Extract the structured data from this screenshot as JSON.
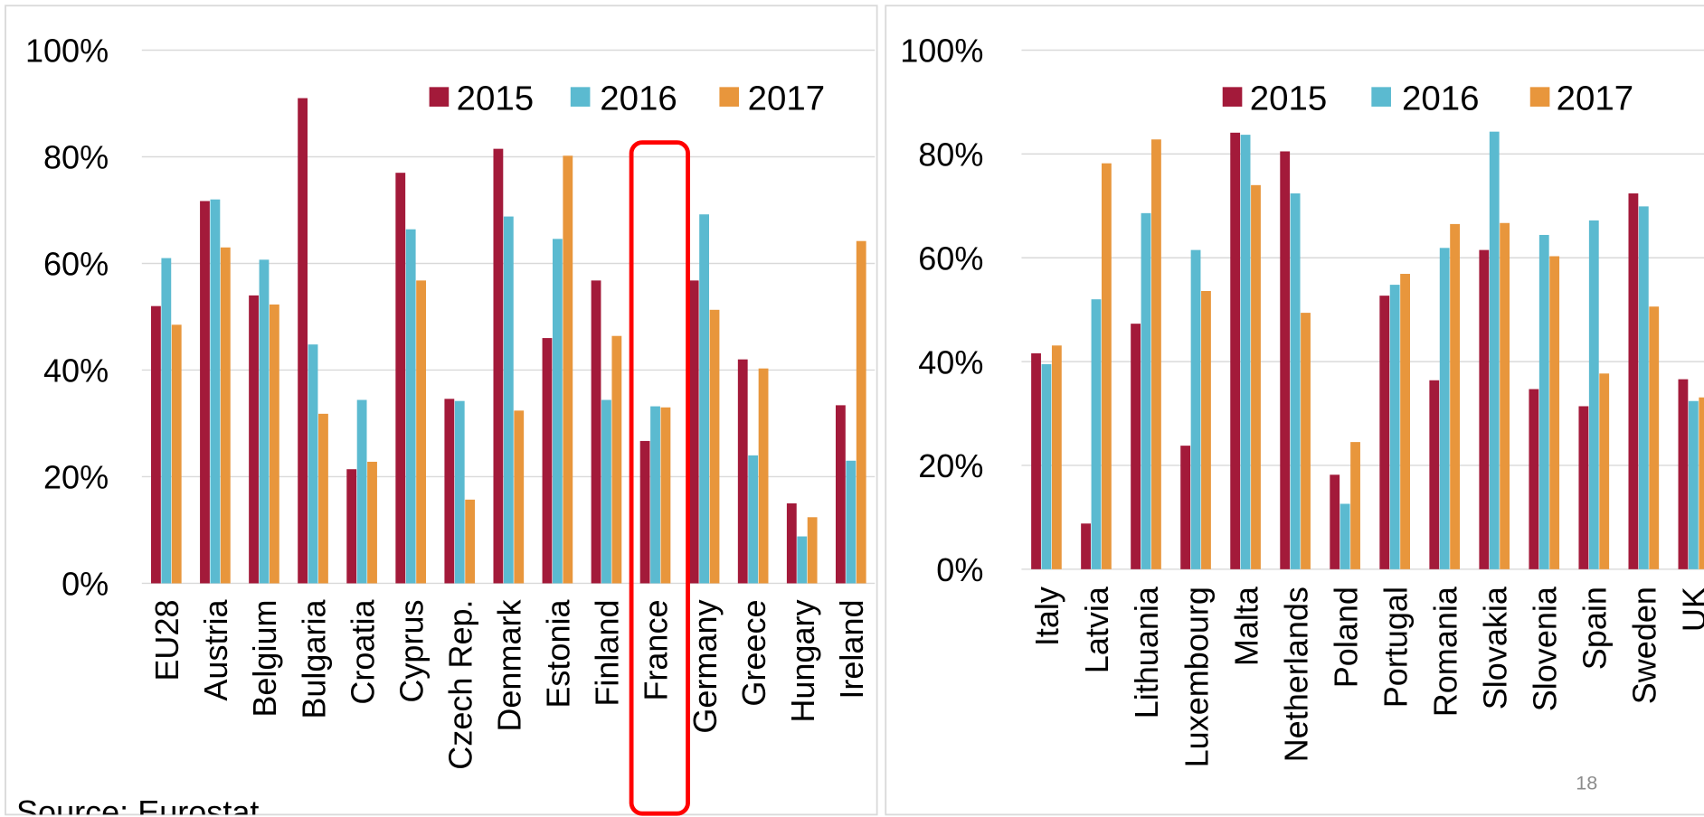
{
  "chart_data": [
    {
      "type": "bar",
      "categories": [
        "EU28",
        "Austria",
        "Belgium",
        "Bulgaria",
        "Croatia",
        "Cyprus",
        "Czech Rep.",
        "Denmark",
        "Estonia",
        "Finland",
        "France",
        "Germany",
        "Greece",
        "Hungary",
        "Ireland"
      ],
      "series": [
        {
          "name": "2015",
          "color": "#a31a3a",
          "values": [
            52,
            71.7,
            54,
            91,
            21.4,
            77,
            34.6,
            81.5,
            46,
            56.8,
            26.7,
            56.8,
            42,
            15,
            33.4
          ]
        },
        {
          "name": "2016",
          "color": "#5bbad0",
          "values": [
            61,
            72,
            60.7,
            44.8,
            34.4,
            66.4,
            34.2,
            68.8,
            64.6,
            34.4,
            33.2,
            69.2,
            24,
            8.8,
            23
          ]
        },
        {
          "name": "2017",
          "color": "#e8963c",
          "values": [
            48.5,
            63,
            52.3,
            31.8,
            22.8,
            56.8,
            15.7,
            32.4,
            80.2,
            46.4,
            33,
            51.3,
            40.3,
            12.4,
            64.2
          ]
        }
      ],
      "ylim": [
        0,
        100
      ],
      "yticks": [
        {
          "value": 0,
          "label": "0%"
        },
        {
          "value": 20,
          "label": "20%"
        },
        {
          "value": 40,
          "label": "40%"
        },
        {
          "value": 60,
          "label": "60%"
        },
        {
          "value": 80,
          "label": "80%"
        },
        {
          "value": 100,
          "label": "100%"
        }
      ],
      "grid": true
    },
    {
      "type": "bar",
      "categories": [
        "Italy",
        "Latvia",
        "Lithuania",
        "Luxembourg",
        "Malta",
        "Netherlands",
        "Poland",
        "Portugal",
        "Romania",
        "Slovakia",
        "Slovenia",
        "Spain",
        "Sweden",
        "UK"
      ],
      "series": [
        {
          "name": "2015",
          "color": "#a31a3a",
          "values": [
            41.6,
            8.8,
            47.3,
            23.8,
            84.1,
            80.5,
            18.2,
            52.7,
            36.4,
            61.5,
            34.7,
            31.4,
            72.4,
            36.6
          ]
        },
        {
          "name": "2016",
          "color": "#5bbad0",
          "values": [
            39.5,
            52,
            68.6,
            61.5,
            83.7,
            72.4,
            12.6,
            54.8,
            61.9,
            84.3,
            64.4,
            67.2,
            69.9,
            32.4
          ]
        },
        {
          "name": "2017",
          "color": "#e8963c",
          "values": [
            43.1,
            78.2,
            82.8,
            53.6,
            74,
            49.4,
            24.5,
            56.9,
            66.5,
            66.7,
            60.3,
            37.7,
            50.6,
            33.1
          ]
        }
      ],
      "ylim": [
        0,
        100
      ],
      "yticks": [
        {
          "value": 0,
          "label": "0%"
        },
        {
          "value": 20,
          "label": "20%"
        },
        {
          "value": 40,
          "label": "40%"
        },
        {
          "value": 60,
          "label": "60%"
        },
        {
          "value": 80,
          "label": "80%"
        },
        {
          "value": 100,
          "label": "100%"
        }
      ],
      "grid": true
    }
  ],
  "source": "Source: Eurostat",
  "page_number": "18"
}
